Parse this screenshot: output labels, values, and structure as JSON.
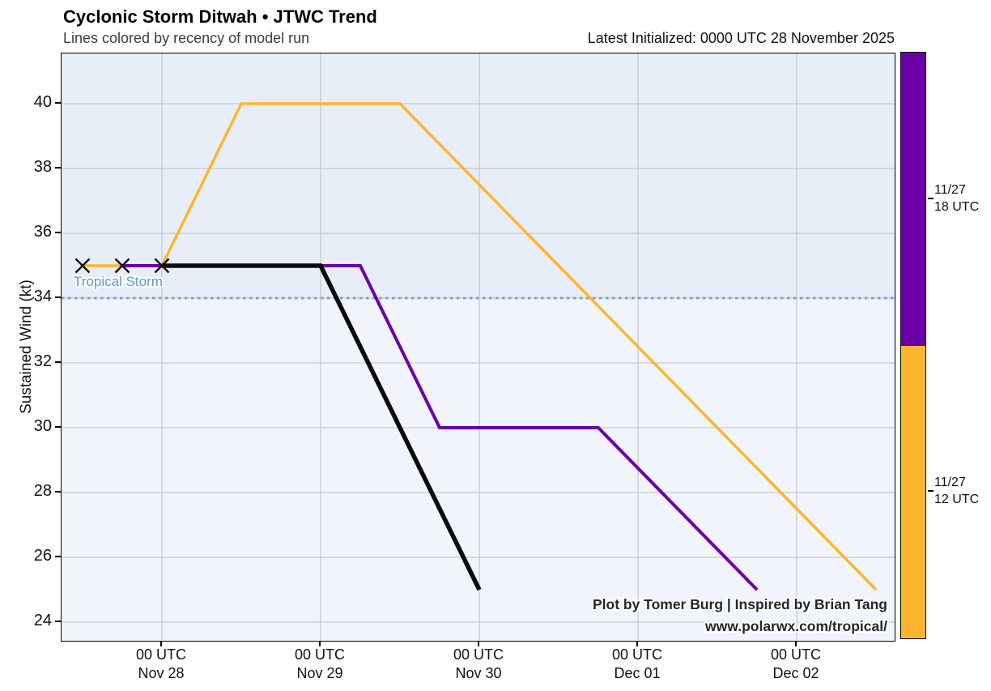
{
  "header": {
    "title": "Cyclonic Storm Ditwah • JTWC Trend",
    "subtitle": "Lines colored by recency of model run",
    "latest_initialized": "Latest Initialized: 0000 UTC 28 November 2025"
  },
  "footer": {
    "credit": "Plot by Tomer Burg | Inspired by Brian Tang",
    "url": "www.polarwx.com/tropical/"
  },
  "colors": {
    "band_above_threshold": "#e8eef7",
    "band_below_threshold": "#f1f4fa",
    "grid": "#c6cacf",
    "threshold_dash": "#79a5d9",
    "marker": "#111111",
    "latest_run": "#0b0b0b",
    "run_1127_18utc": "#6b00a8",
    "run_1127_12utc": "#fdb62e"
  },
  "chart_data": {
    "type": "line",
    "title": "Cyclonic Storm Ditwah • JTWC Trend",
    "subtitle": "Lines colored by recency of model run",
    "top_right_annotation": "Latest Initialized: 0000 UTC 28 November 2025",
    "xlabel": "",
    "ylabel": "Sustained Wind (kt)",
    "ylim": [
      23.4,
      41.6
    ],
    "x_axis_hours_since_1127_00utc": [
      9,
      135
    ],
    "grid": true,
    "y_ticks": [
      40,
      38,
      36,
      34,
      32,
      30,
      28,
      26,
      24
    ],
    "x_ticks": [
      {
        "line1": "00 UTC",
        "line2": "Nov 28",
        "hour": 24
      },
      {
        "line1": "00 UTC",
        "line2": "Nov 29",
        "hour": 48
      },
      {
        "line1": "00 UTC",
        "line2": "Nov 30",
        "hour": 72
      },
      {
        "line1": "00 UTC",
        "line2": "Dec 01",
        "hour": 96
      },
      {
        "line1": "00 UTC",
        "line2": "Dec 02",
        "hour": 120
      }
    ],
    "threshold_line": {
      "value": 34,
      "label": "Tropical Storm",
      "style": "dotted"
    },
    "series": [
      {
        "name": "11/27 12 UTC",
        "color": "#fdb62e",
        "width": 3.5,
        "points": [
          {
            "time": "11/27 12 UTC",
            "hour": 12,
            "kt": 35
          },
          {
            "time": "11/27 18 UTC",
            "hour": 18,
            "kt": 35
          },
          {
            "time": "11/28 00 UTC",
            "hour": 24,
            "kt": 35
          },
          {
            "time": "11/28 12 UTC",
            "hour": 36,
            "kt": 40
          },
          {
            "time": "11/29 12 UTC",
            "hour": 60,
            "kt": 40
          },
          {
            "time": "11/30 12 UTC",
            "hour": 84,
            "kt": 35
          },
          {
            "time": "12/01 12 UTC",
            "hour": 108,
            "kt": 30
          },
          {
            "time": "12/02 12 UTC",
            "hour": 132,
            "kt": 25
          }
        ]
      },
      {
        "name": "11/27 18 UTC",
        "color": "#6b00a8",
        "width": 4,
        "points": [
          {
            "time": "11/27 18 UTC",
            "hour": 18,
            "kt": 35
          },
          {
            "time": "11/28 00 UTC",
            "hour": 24,
            "kt": 35
          },
          {
            "time": "11/29 00 UTC",
            "hour": 48,
            "kt": 35
          },
          {
            "time": "11/29 06 UTC",
            "hour": 54,
            "kt": 35
          },
          {
            "time": "11/29 18 UTC",
            "hour": 66,
            "kt": 30
          },
          {
            "time": "11/30 18 UTC",
            "hour": 90,
            "kt": 30
          },
          {
            "time": "12/01 18 UTC",
            "hour": 114,
            "kt": 25
          }
        ]
      },
      {
        "name": "11/28 00 UTC (latest)",
        "color": "#0b0b0b",
        "width": 5.5,
        "points": [
          {
            "time": "11/28 00 UTC",
            "hour": 24,
            "kt": 35
          },
          {
            "time": "11/29 00 UTC",
            "hour": 48,
            "kt": 35
          },
          {
            "time": "11/29 12 UTC",
            "hour": 60,
            "kt": 30
          },
          {
            "time": "11/30 00 UTC",
            "hour": 72,
            "kt": 25
          }
        ]
      }
    ],
    "analysis_markers": [
      {
        "time": "11/27 12 UTC",
        "hour": 12,
        "kt": 35
      },
      {
        "time": "11/27 18 UTC",
        "hour": 18,
        "kt": 35
      },
      {
        "time": "11/28 00 UTC",
        "hour": 24,
        "kt": 35
      }
    ],
    "legend_position": "right-colorbar"
  },
  "colorbar": {
    "segments": [
      {
        "color": "#6b00a8",
        "label_line1": "11/27",
        "label_line2": "18 UTC"
      },
      {
        "color": "#fdb62e",
        "label_line1": "11/27",
        "label_line2": "12 UTC"
      }
    ]
  }
}
